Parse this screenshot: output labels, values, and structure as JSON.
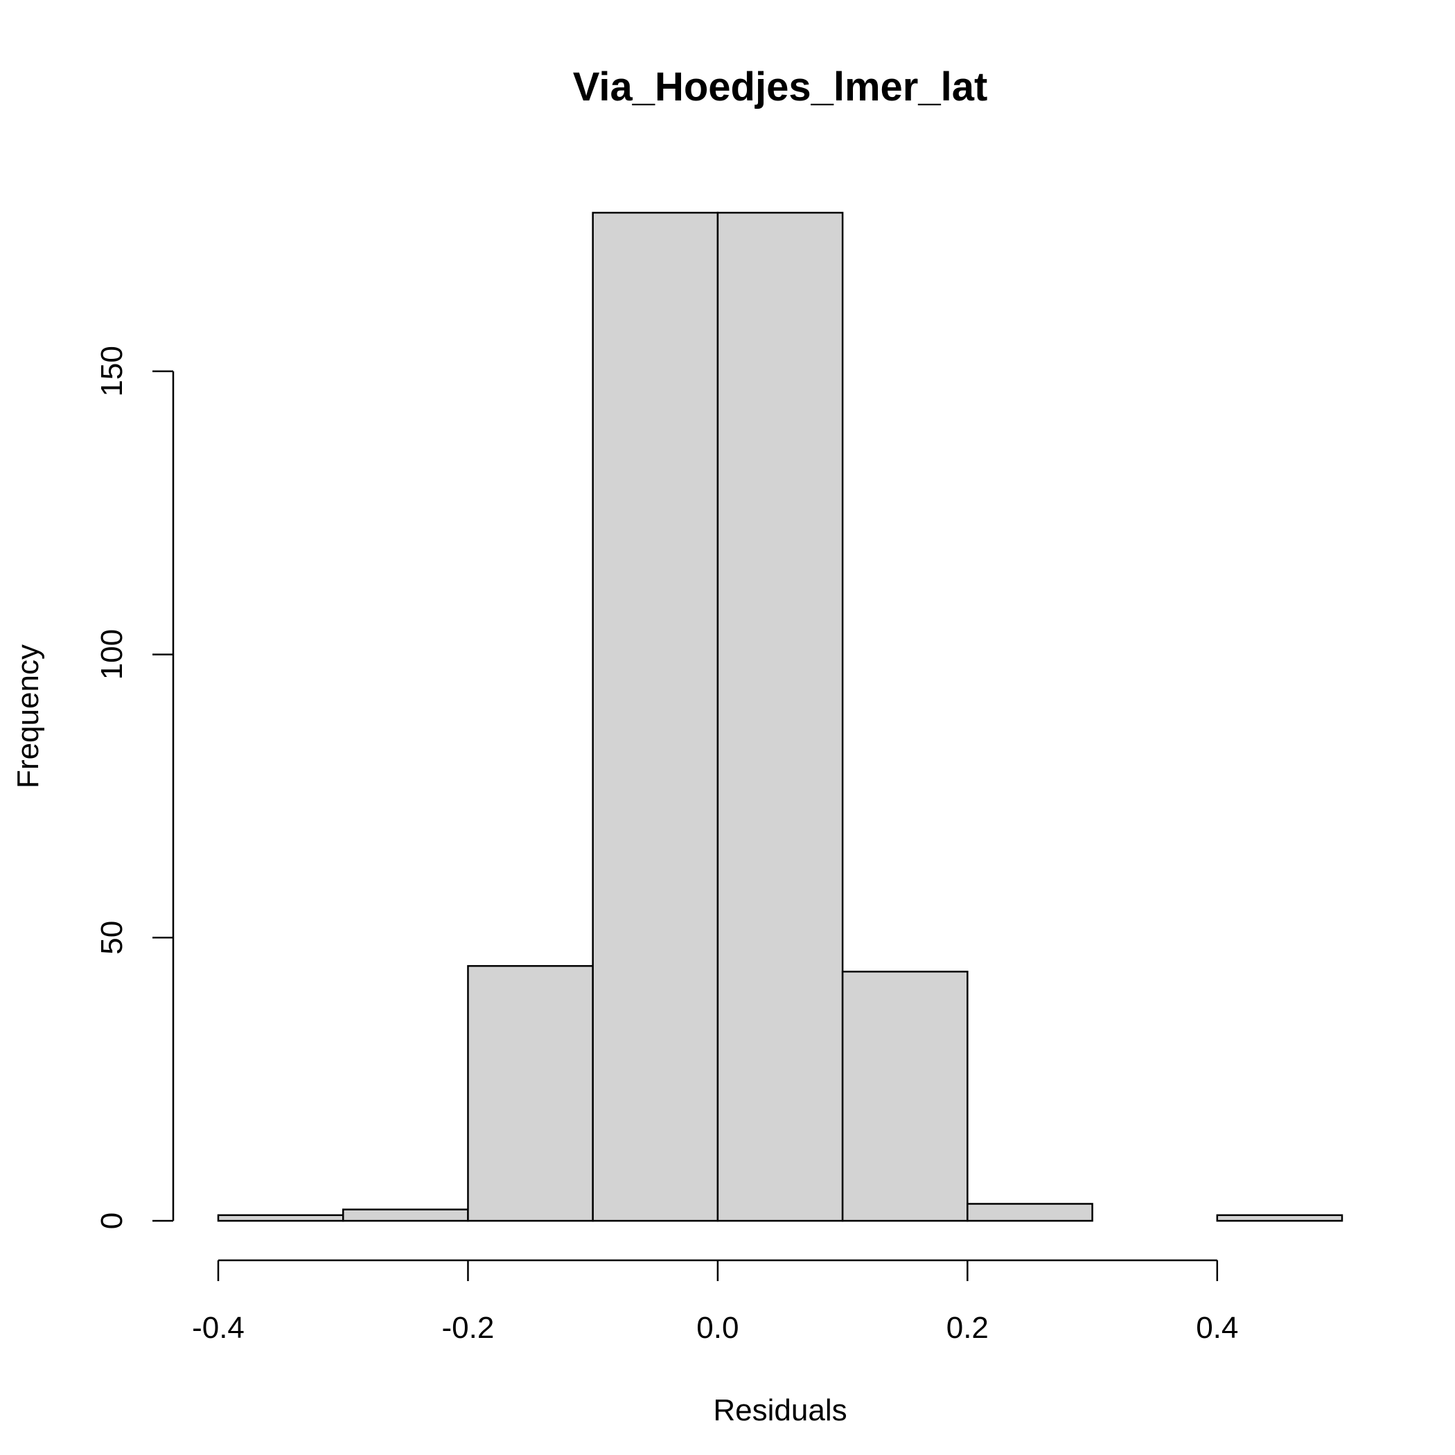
{
  "chart_data": {
    "type": "histogram",
    "title": "Via_Hoedjes_lmer_lat",
    "xlabel": "Residuals",
    "ylabel": "Frequency",
    "bins": [
      {
        "x0": -0.4,
        "x1": -0.3,
        "count": 1
      },
      {
        "x0": -0.3,
        "x1": -0.2,
        "count": 2
      },
      {
        "x0": -0.2,
        "x1": -0.1,
        "count": 45
      },
      {
        "x0": -0.1,
        "x1": 0.0,
        "count": 178
      },
      {
        "x0": 0.0,
        "x1": 0.1,
        "count": 178
      },
      {
        "x0": 0.1,
        "x1": 0.2,
        "count": 44
      },
      {
        "x0": 0.2,
        "x1": 0.3,
        "count": 3
      },
      {
        "x0": 0.3,
        "x1": 0.4,
        "count": 0
      },
      {
        "x0": 0.4,
        "x1": 0.5,
        "count": 1
      }
    ],
    "xlim": [
      -0.4,
      0.5
    ],
    "ylim": [
      0,
      178
    ],
    "x_ticks": [
      -0.4,
      -0.2,
      0.0,
      0.2,
      0.4
    ],
    "x_tick_labels": [
      "-0.4",
      "-0.2",
      "0.0",
      "0.2",
      "0.4"
    ],
    "y_ticks": [
      0,
      50,
      100,
      150
    ],
    "y_tick_labels": [
      "0",
      "50",
      "100",
      "150"
    ],
    "bar_fill": "#d3d3d3",
    "bar_stroke": "#000000",
    "grid": false
  }
}
